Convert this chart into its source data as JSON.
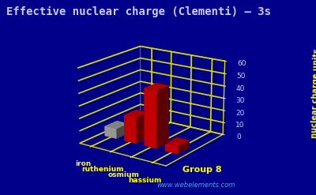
{
  "title": "Effective nuclear charge (Clementi) – 3s",
  "elements": [
    "iron",
    "ruthenium",
    "osmium",
    "hassium"
  ],
  "values": [
    8.0,
    21.0,
    46.0,
    6.0
  ],
  "bar_color_red": "#dd0000",
  "bar_color_gray": "#aaaaaa",
  "background_color": "#00008b",
  "grid_color": "#dddd00",
  "text_color_yellow": "#ffff00",
  "text_color_white": "#ccccff",
  "ylabel": "nuclear charge units",
  "xlabel": "Group 8",
  "watermark": "www.webelements.com",
  "ylim": [
    0,
    60
  ],
  "yticks": [
    0,
    10,
    20,
    30,
    40,
    50,
    60
  ],
  "title_fontsize": 10,
  "figsize": [
    4.0,
    2.47
  ],
  "dpi": 100
}
